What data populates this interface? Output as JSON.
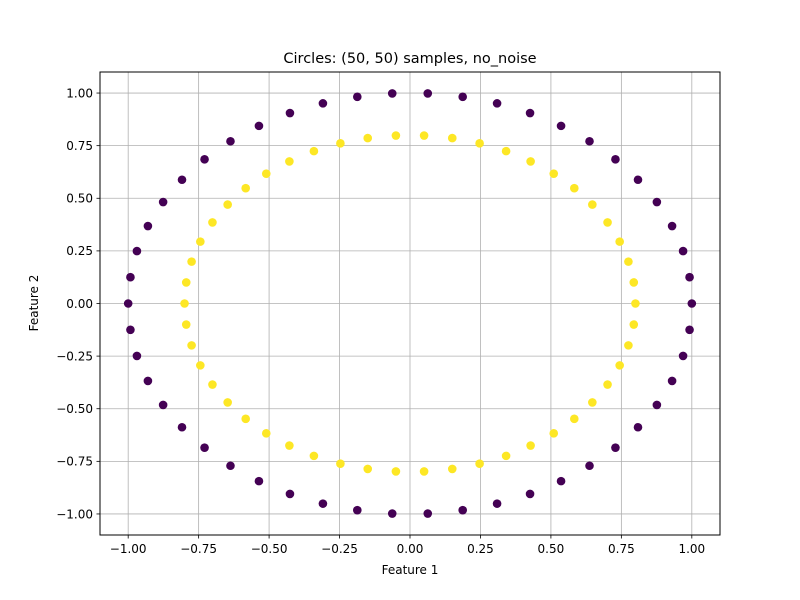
{
  "chart_data": {
    "type": "scatter",
    "title": "Circles: (50, 50) samples, no_noise",
    "xlabel": "Feature 1",
    "ylabel": "Feature 2",
    "xlim": [
      -1.1,
      1.1
    ],
    "ylim": [
      -1.1,
      1.1
    ],
    "xticks": [
      "−1.00",
      "−0.75",
      "−0.50",
      "−0.25",
      "0.00",
      "0.25",
      "0.50",
      "0.75",
      "1.00"
    ],
    "xtick_values": [
      -1.0,
      -0.75,
      -0.5,
      -0.25,
      0.0,
      0.25,
      0.5,
      0.75,
      1.0
    ],
    "yticks": [
      "−1.00",
      "−0.75",
      "−0.50",
      "−0.25",
      "0.00",
      "0.25",
      "0.50",
      "0.75",
      "1.00"
    ],
    "ytick_values": [
      -1.0,
      -0.75,
      -0.5,
      -0.25,
      0.0,
      0.25,
      0.5,
      0.75,
      1.0
    ],
    "grid": true,
    "legend": "none",
    "series": [
      {
        "color": "#440154",
        "points": [
          [
            1.0,
            0.0
          ],
          [
            0.992,
            0.125
          ],
          [
            0.969,
            0.249
          ],
          [
            0.93,
            0.368
          ],
          [
            0.876,
            0.482
          ],
          [
            0.809,
            0.588
          ],
          [
            0.729,
            0.685
          ],
          [
            0.637,
            0.771
          ],
          [
            0.536,
            0.844
          ],
          [
            0.426,
            0.905
          ],
          [
            0.309,
            0.951
          ],
          [
            0.187,
            0.982
          ],
          [
            0.063,
            0.998
          ],
          [
            -0.063,
            0.998
          ],
          [
            -0.187,
            0.982
          ],
          [
            -0.309,
            0.951
          ],
          [
            -0.426,
            0.905
          ],
          [
            -0.536,
            0.844
          ],
          [
            -0.637,
            0.771
          ],
          [
            -0.729,
            0.685
          ],
          [
            -0.809,
            0.588
          ],
          [
            -0.876,
            0.482
          ],
          [
            -0.93,
            0.368
          ],
          [
            -0.969,
            0.249
          ],
          [
            -0.992,
            0.125
          ],
          [
            -1.0,
            0.0
          ],
          [
            -0.992,
            -0.125
          ],
          [
            -0.969,
            -0.249
          ],
          [
            -0.93,
            -0.368
          ],
          [
            -0.876,
            -0.482
          ],
          [
            -0.809,
            -0.588
          ],
          [
            -0.729,
            -0.685
          ],
          [
            -0.637,
            -0.771
          ],
          [
            -0.536,
            -0.844
          ],
          [
            -0.426,
            -0.905
          ],
          [
            -0.309,
            -0.951
          ],
          [
            -0.187,
            -0.982
          ],
          [
            -0.063,
            -0.998
          ],
          [
            0.063,
            -0.998
          ],
          [
            0.187,
            -0.982
          ],
          [
            0.309,
            -0.951
          ],
          [
            0.426,
            -0.905
          ],
          [
            0.536,
            -0.844
          ],
          [
            0.637,
            -0.771
          ],
          [
            0.729,
            -0.685
          ],
          [
            0.809,
            -0.588
          ],
          [
            0.876,
            -0.482
          ],
          [
            0.93,
            -0.368
          ],
          [
            0.969,
            -0.249
          ],
          [
            0.992,
            -0.125
          ]
        ]
      },
      {
        "color": "#fde725",
        "points": [
          [
            0.8,
            0.0
          ],
          [
            0.794,
            0.1
          ],
          [
            0.775,
            0.199
          ],
          [
            0.744,
            0.294
          ],
          [
            0.701,
            0.385
          ],
          [
            0.647,
            0.47
          ],
          [
            0.583,
            0.548
          ],
          [
            0.51,
            0.617
          ],
          [
            0.428,
            0.675
          ],
          [
            0.341,
            0.724
          ],
          [
            0.247,
            0.761
          ],
          [
            0.15,
            0.786
          ],
          [
            0.05,
            0.798
          ],
          [
            -0.05,
            0.798
          ],
          [
            -0.15,
            0.786
          ],
          [
            -0.247,
            0.761
          ],
          [
            -0.341,
            0.724
          ],
          [
            -0.428,
            0.675
          ],
          [
            -0.51,
            0.617
          ],
          [
            -0.583,
            0.548
          ],
          [
            -0.647,
            0.47
          ],
          [
            -0.701,
            0.385
          ],
          [
            -0.744,
            0.294
          ],
          [
            -0.775,
            0.199
          ],
          [
            -0.794,
            0.1
          ],
          [
            -0.8,
            0.0
          ],
          [
            -0.794,
            -0.1
          ],
          [
            -0.775,
            -0.199
          ],
          [
            -0.744,
            -0.294
          ],
          [
            -0.701,
            -0.385
          ],
          [
            -0.647,
            -0.47
          ],
          [
            -0.583,
            -0.548
          ],
          [
            -0.51,
            -0.617
          ],
          [
            -0.428,
            -0.675
          ],
          [
            -0.341,
            -0.724
          ],
          [
            -0.247,
            -0.761
          ],
          [
            -0.15,
            -0.786
          ],
          [
            -0.05,
            -0.798
          ],
          [
            0.05,
            -0.798
          ],
          [
            0.15,
            -0.786
          ],
          [
            0.247,
            -0.761
          ],
          [
            0.341,
            -0.724
          ],
          [
            0.428,
            -0.675
          ],
          [
            0.51,
            -0.617
          ],
          [
            0.583,
            -0.548
          ],
          [
            0.647,
            -0.47
          ],
          [
            0.701,
            -0.385
          ],
          [
            0.744,
            -0.294
          ],
          [
            0.775,
            -0.199
          ],
          [
            0.794,
            -0.1
          ]
        ]
      }
    ]
  }
}
